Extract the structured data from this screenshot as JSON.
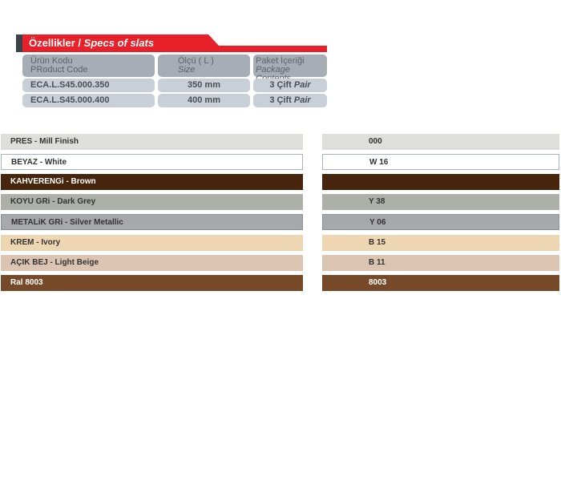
{
  "header": {
    "title_tr": "Özellikler / ",
    "title_en": "Specs of slats"
  },
  "table": {
    "columns": [
      {
        "tr": "Ürün Kodu",
        "en": "PRoduct Code"
      },
      {
        "tr": "Ölçü ( L )",
        "en": "Size"
      },
      {
        "tr": "Paket İçeriği",
        "en": "Package Contents"
      }
    ],
    "rows": [
      {
        "code": "ECA.L.S45.000.350",
        "size": "350 mm",
        "pack": "3 Çift ",
        "pack_en": "Pair"
      },
      {
        "code": "ECA.L.S45.000.400",
        "size": "400 mm",
        "pack": "3 Çift ",
        "pack_en": "Pair"
      }
    ]
  },
  "colors": [
    {
      "name": "PRES -  Mill Finish",
      "code": "000",
      "bg": "#dededd",
      "fg": "#333"
    },
    {
      "name": "BEYAZ -  White",
      "code": "W 16",
      "bg": "#ffffff",
      "fg": "#333",
      "border": "#a9b3bd"
    },
    {
      "name": "KAHVERENGi -  Brown",
      "code": "",
      "bg": "#47250c",
      "fg": "#fff"
    },
    {
      "name": "KOYU GRi -  Dark Grey",
      "code": "Y 38",
      "bg": "#acb0a9",
      "fg": "#333"
    },
    {
      "name": "METALiK GRi -  Silver Metallic",
      "code": "Y 06",
      "bg": "#a6a8ac",
      "fg": "#333",
      "border": "#8a9299"
    },
    {
      "name": "KREM -  Ivory",
      "code": "B 15",
      "bg": "#eed6b3",
      "fg": "#333"
    },
    {
      "name": "AÇIK BEJ -  Light Beige",
      "code": "B 11",
      "bg": "#dbc5b2",
      "fg": "#333"
    },
    {
      "name": "Ral 8003",
      "code": "8003",
      "bg": "#764a28",
      "fg": "#fff"
    }
  ]
}
